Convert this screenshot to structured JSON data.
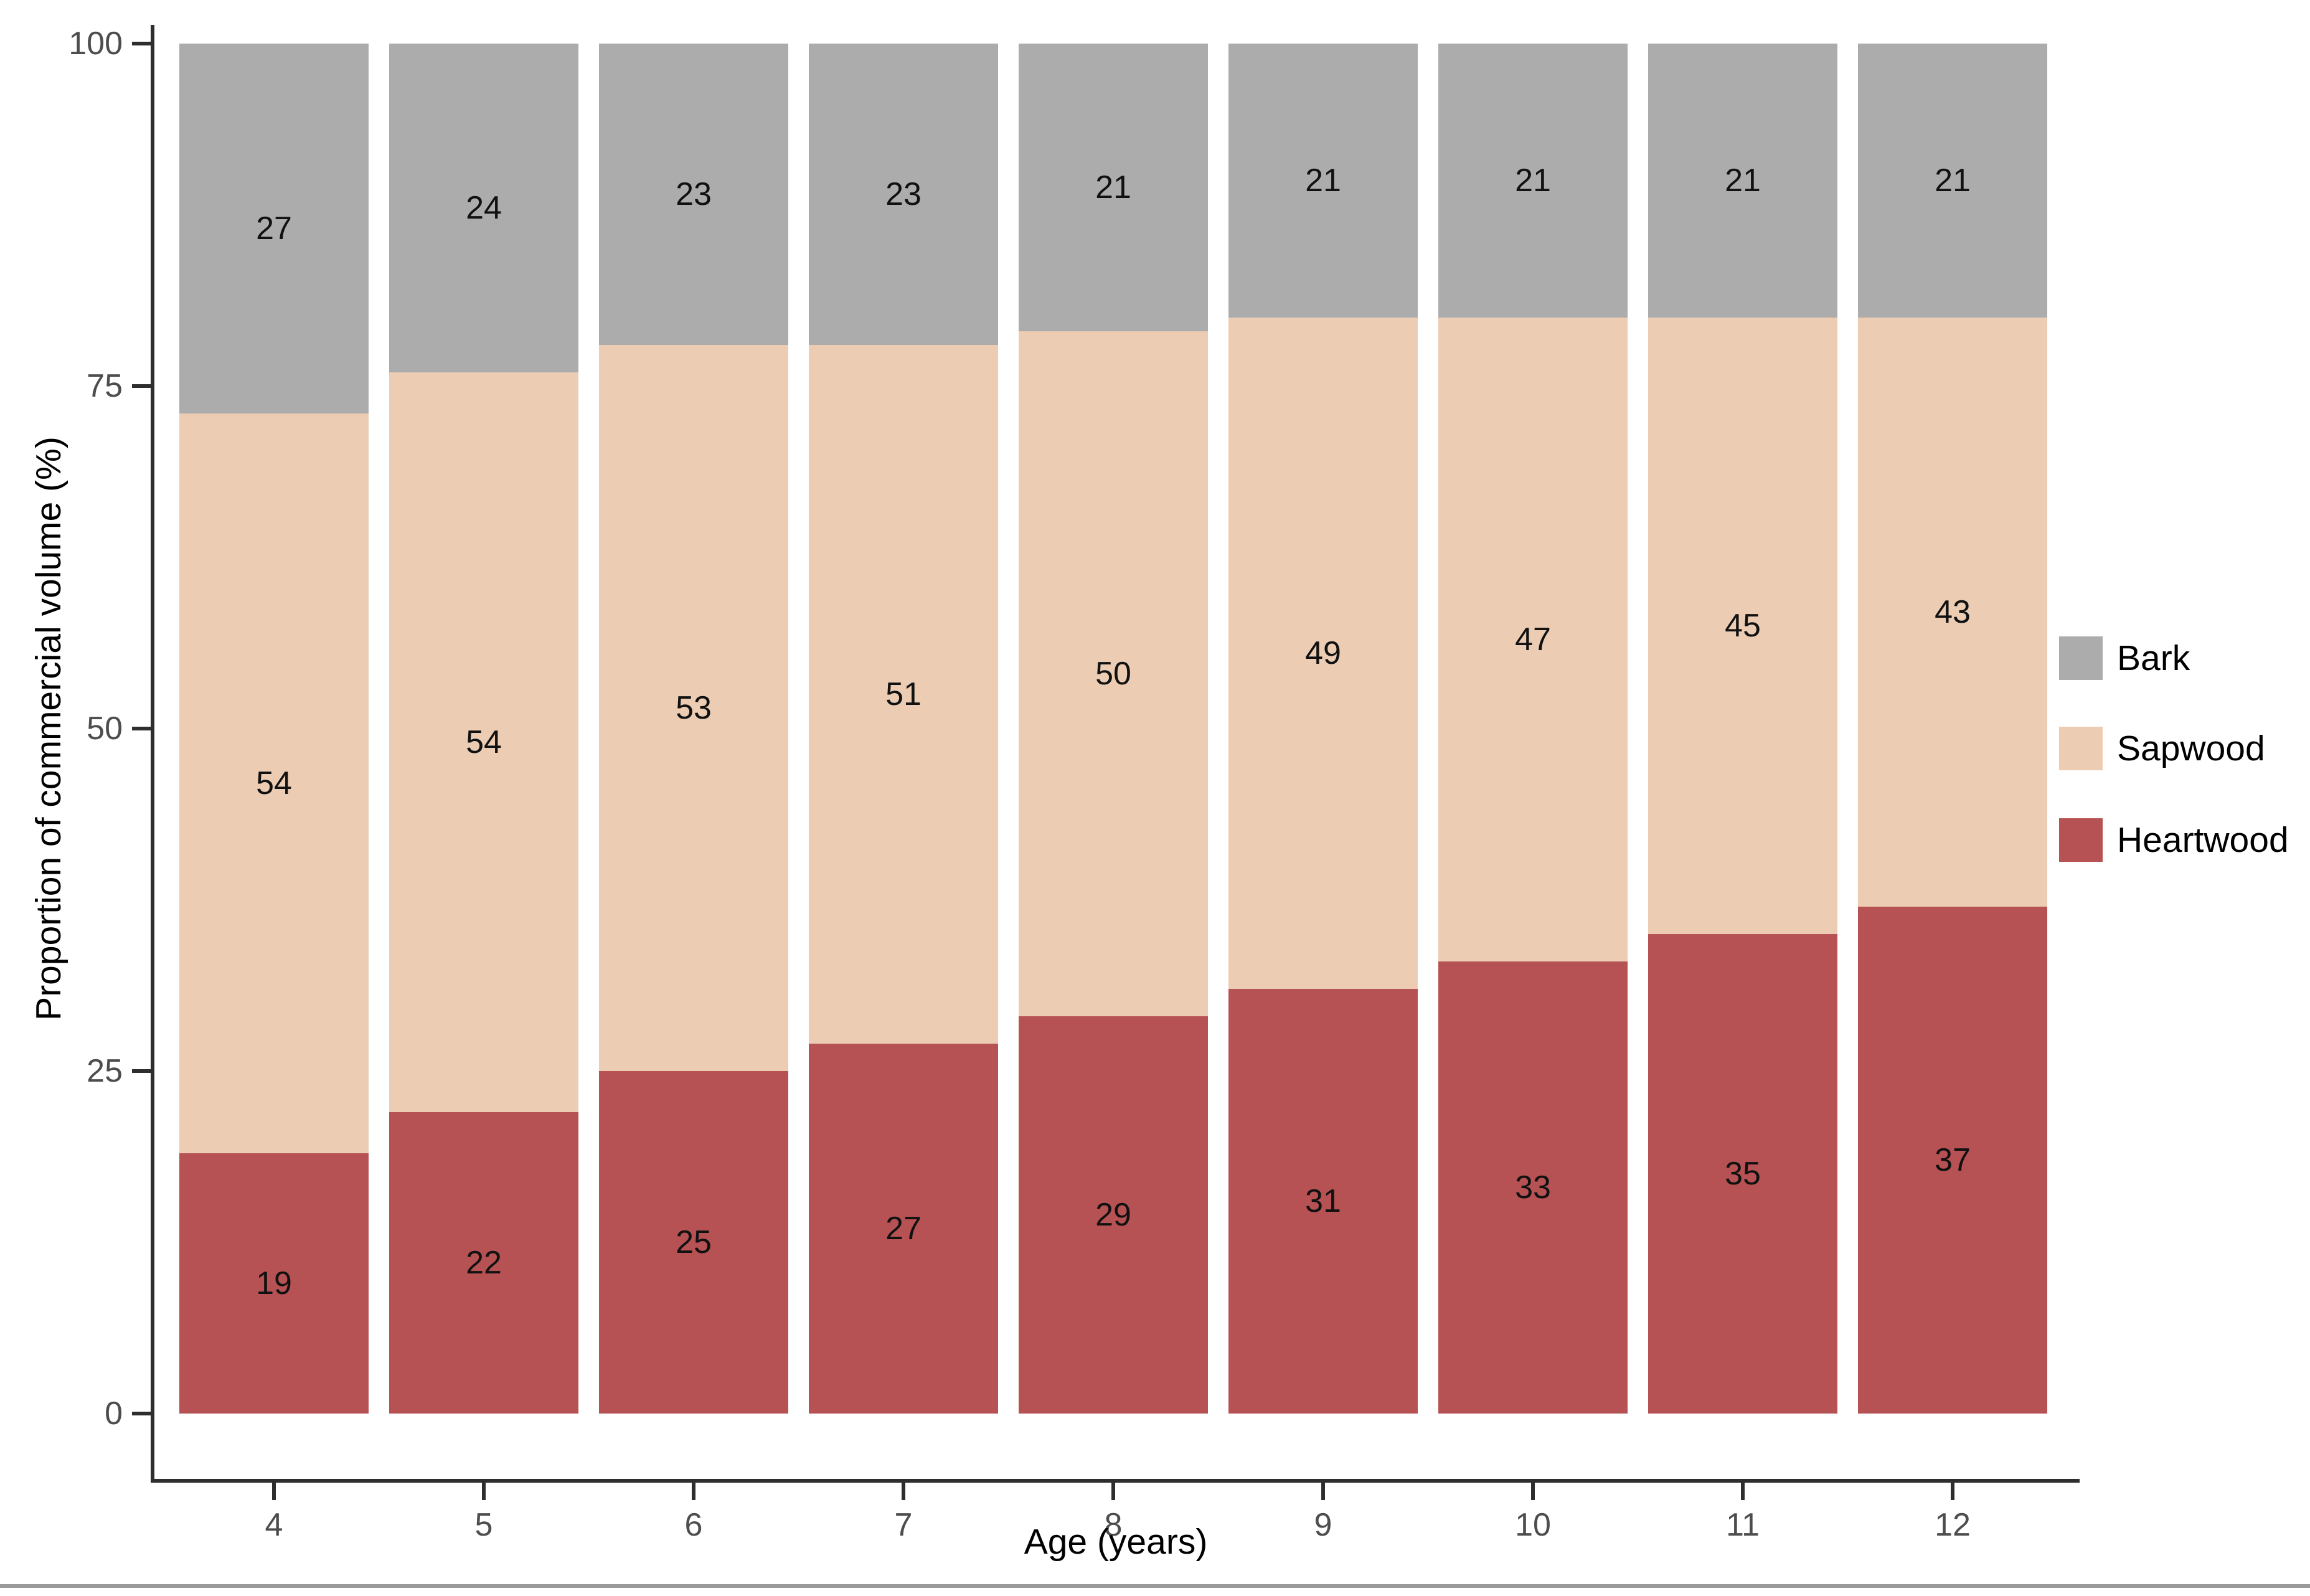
{
  "chart_data": {
    "type": "bar",
    "stacked": true,
    "title": "",
    "xlabel": "Age (years)",
    "ylabel": "Proportion of commercial volume (%)",
    "categories": [
      "4",
      "5",
      "6",
      "7",
      "8",
      "9",
      "10",
      "11",
      "12"
    ],
    "series": [
      {
        "name": "Heartwood",
        "color": "#B65253",
        "values": [
          19,
          22,
          25,
          27,
          29,
          31,
          33,
          35,
          37
        ]
      },
      {
        "name": "Sapwood",
        "color": "#ECCDB4",
        "values": [
          54,
          54,
          53,
          51,
          50,
          49,
          47,
          45,
          43
        ]
      },
      {
        "name": "Bark",
        "color": "#ACACAC",
        "values": [
          27,
          24,
          23,
          23,
          21,
          21,
          21,
          21,
          21
        ]
      }
    ],
    "ylim": [
      0,
      100
    ],
    "yticks": [
      "0",
      "25",
      "50",
      "75",
      "100"
    ],
    "grid": false,
    "legend_position": "right",
    "legend_order_top_to_bottom": [
      "Bark",
      "Sapwood",
      "Heartwood"
    ],
    "value_labels": "centered in each segment"
  },
  "legend": {
    "items": [
      {
        "label": "Bark",
        "color": "#ACACAC"
      },
      {
        "label": "Sapwood",
        "color": "#ECCDB4"
      },
      {
        "label": "Heartwood",
        "color": "#B65253"
      }
    ]
  },
  "colors": {
    "axis_line": "#2e2e2e",
    "tick_label": "#4d4d4d",
    "bar_label": "#111111",
    "page_rule": "#9a9a9a",
    "background": "#ffffff"
  }
}
